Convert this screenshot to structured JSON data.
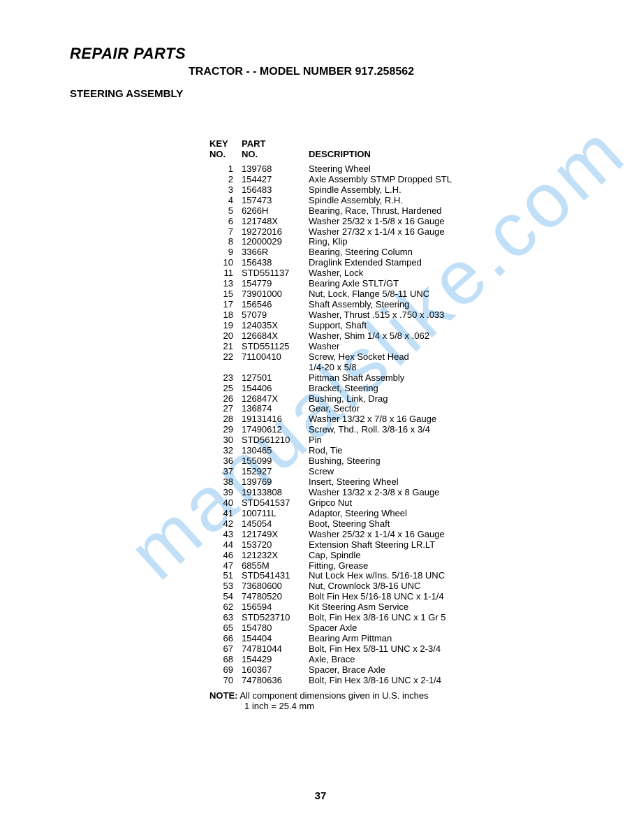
{
  "header": {
    "main_title": "REPAIR PARTS",
    "sub_title": "TRACTOR - - MODEL NUMBER 917.258562",
    "section": "STEERING ASSEMBLY"
  },
  "table": {
    "headers": {
      "key_line1": "KEY",
      "key_line2": "NO.",
      "part_line1": "PART",
      "part_line2": "NO.",
      "desc": "DESCRIPTION"
    },
    "rows": [
      {
        "key": "1",
        "part": "139768",
        "desc": "Steering Wheel"
      },
      {
        "key": "2",
        "part": "154427",
        "desc": "Axle Assembly STMP Dropped STL"
      },
      {
        "key": "3",
        "part": "156483",
        "desc": "Spindle Assembly, L.H."
      },
      {
        "key": "4",
        "part": "157473",
        "desc": "Spindle Assembly, R.H."
      },
      {
        "key": "5",
        "part": "6266H",
        "desc": "Bearing, Race, Thrust, Hardened"
      },
      {
        "key": "6",
        "part": "121748X",
        "desc": "Washer  25/32 x 1-5/8 x 16 Gauge"
      },
      {
        "key": "7",
        "part": "19272016",
        "desc": "Washer  27/32 x 1-1/4 x 16 Gauge"
      },
      {
        "key": "8",
        "part": "12000029",
        "desc": "Ring, Klip"
      },
      {
        "key": "9",
        "part": "3366R",
        "desc": "Bearing, Steering Column"
      },
      {
        "key": "10",
        "part": "156438",
        "desc": "Draglink Extended Stamped"
      },
      {
        "key": "11",
        "part": "STD551137",
        "desc": "Washer, Lock"
      },
      {
        "key": "13",
        "part": "154779",
        "desc": "Bearing Axle STLT/GT"
      },
      {
        "key": "15",
        "part": "73901000",
        "desc": "Nut, Lock, Flange  5/8-11 UNC"
      },
      {
        "key": "17",
        "part": "156546",
        "desc": "Shaft Assembly, Steering"
      },
      {
        "key": "18",
        "part": "57079",
        "desc": "Washer, Thrust  .515 x .750 x .033"
      },
      {
        "key": "19",
        "part": "124035X",
        "desc": "Support, Shaft"
      },
      {
        "key": "20",
        "part": "126684X",
        "desc": "Washer, Shim 1/4 x 5/8 x .062"
      },
      {
        "key": "21",
        "part": "STD551125",
        "desc": "Washer"
      },
      {
        "key": "22",
        "part": "71100410",
        "desc": "Screw, Hex Socket Head"
      },
      {
        "key": "",
        "part": "",
        "desc": "1/4-20 x 5/8"
      },
      {
        "key": "23",
        "part": "127501",
        "desc": "Pittman Shaft Assembly"
      },
      {
        "key": "25",
        "part": "154406",
        "desc": "Bracket, Steering"
      },
      {
        "key": "26",
        "part": "126847X",
        "desc": "Bushing, Link, Drag"
      },
      {
        "key": "27",
        "part": "136874",
        "desc": "Gear, Sector"
      },
      {
        "key": "28",
        "part": "19131416",
        "desc": "Washer  13/32 x 7/8 x 16 Gauge"
      },
      {
        "key": "29",
        "part": "17490612",
        "desc": "Screw, Thd., Roll.  3/8-16 x 3/4"
      },
      {
        "key": "30",
        "part": "STD561210",
        "desc": "Pin"
      },
      {
        "key": "32",
        "part": "130465",
        "desc": "Rod, Tie"
      },
      {
        "key": "36",
        "part": "155099",
        "desc": "Bushing, Steering"
      },
      {
        "key": "37",
        "part": "152927",
        "desc": "Screw"
      },
      {
        "key": "38",
        "part": "139769",
        "desc": "Insert, Steering Wheel"
      },
      {
        "key": "39",
        "part": "19133808",
        "desc": "Washer  13/32 x 2-3/8 x 8 Gauge"
      },
      {
        "key": "40",
        "part": "STD541537",
        "desc": "Gripco Nut"
      },
      {
        "key": "41",
        "part": "100711L",
        "desc": "Adaptor, Steering Wheel"
      },
      {
        "key": "42",
        "part": "145054",
        "desc": "Boot, Steering Shaft"
      },
      {
        "key": "43",
        "part": "121749X",
        "desc": "Washer  25/32 x 1-1/4 x 16 Gauge"
      },
      {
        "key": "44",
        "part": "153720",
        "desc": "Extension Shaft Steering  LR.LT"
      },
      {
        "key": "46",
        "part": "121232X",
        "desc": "Cap, Spindle"
      },
      {
        "key": "47",
        "part": "6855M",
        "desc": "Fitting, Grease"
      },
      {
        "key": "51",
        "part": "STD541431",
        "desc": "Nut Lock Hex w/Ins.  5/16-18 UNC"
      },
      {
        "key": "53",
        "part": "73680600",
        "desc": "Nut, Crownlock 3/8-16 UNC"
      },
      {
        "key": "54",
        "part": "74780520",
        "desc": "Bolt Fin Hex  5/16-18 UNC x 1-1/4"
      },
      {
        "key": "62",
        "part": "156594",
        "desc": "Kit Steering Asm Service"
      },
      {
        "key": "63",
        "part": "STD523710",
        "desc": "Bolt, Fin Hex 3/8-16 UNC x 1 Gr 5"
      },
      {
        "key": "65",
        "part": "154780",
        "desc": "Spacer Axle"
      },
      {
        "key": "66",
        "part": "154404",
        "desc": "Bearing Arm Pittman"
      },
      {
        "key": "67",
        "part": "74781044",
        "desc": "Bolt, Fin Hex 5/8-11 UNC x 2-3/4"
      },
      {
        "key": "68",
        "part": "154429",
        "desc": "Axle, Brace"
      },
      {
        "key": "69",
        "part": "160367",
        "desc": "Spacer, Brace Axle"
      },
      {
        "key": "70",
        "part": "74780636",
        "desc": "Bolt, Fin Hex 3/8-16 UNC x 2-1/4"
      }
    ]
  },
  "note": {
    "label": "NOTE:",
    "line1": "All component dimensions given in U.S. inches",
    "line2": "1 inch = 25.4 mm"
  },
  "page_number": "37",
  "watermark": "manualslike.com"
}
